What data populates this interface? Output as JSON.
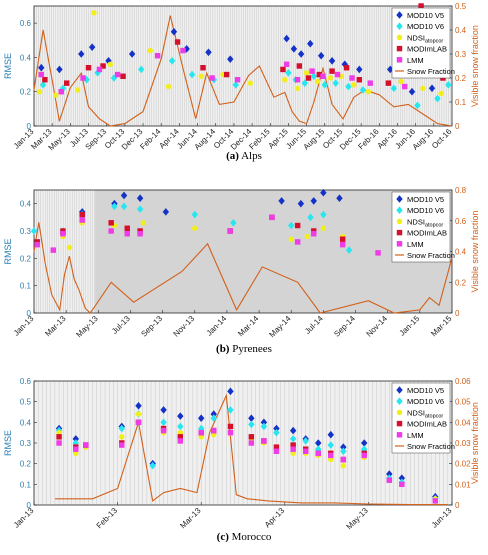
{
  "legend_labels": [
    "MOD10 V5",
    "MOD10 V6",
    "NDSI",
    "MODImLAB",
    "LMM",
    "Snow Fraction"
  ],
  "legend_subscript": "atopcor",
  "colors": {
    "MOD10 V5": "#1432c8",
    "MOD10 V6": "#27e6f0",
    "NDSI": "#f2ee1c",
    "MODImLAB": "#d4102c",
    "LMM": "#ee3ce6",
    "Snow Fraction": "#d2601a",
    "axis_left": "#2a7fb5",
    "axis_right": "#d2601a"
  },
  "chart_data": [
    {
      "type": "scatter",
      "panel": "a",
      "caption_letter": "(a)",
      "caption_text": "Alps",
      "ylabel": "RMSE",
      "y2label": "Visible snow fraction",
      "ylim": [
        0,
        0.7
      ],
      "y2lim": [
        0,
        0.5
      ],
      "yticks": [
        0,
        0.2,
        0.4,
        0.6
      ],
      "y2ticks": [
        0,
        0.1,
        0.2,
        0.3,
        0.4,
        0.5
      ],
      "xticks": [
        "Jan-13",
        "Mar-13",
        "May-13",
        "Jul-13",
        "Sep-13",
        "Oct-13",
        "Dec-13",
        "Feb-14",
        "Apr-14",
        "Jun-14",
        "Aug-14",
        "Oct-14",
        "Dec-14",
        "Feb-15",
        "Apr-15",
        "Jun-15",
        "Aug-15",
        "Oct-15",
        "Dec-15",
        "Feb-16",
        "Apr-16",
        "Jun-16",
        "Aug-16",
        "Oct-16"
      ],
      "xlim": [
        0,
        23
      ],
      "series": [
        {
          "name": "MOD10 V5",
          "x": [
            0.4,
            1.4,
            2.6,
            3.2,
            4.1,
            5.4,
            7.7,
            8.4,
            9.6,
            10.8,
            13.9,
            14.3,
            14.7,
            15.2,
            15.8,
            16.4,
            17.1,
            17.9,
            19.6,
            20.8,
            21.9,
            22.6
          ],
          "values": [
            0.34,
            0.33,
            0.42,
            0.46,
            0.38,
            0.42,
            0.55,
            0.45,
            0.43,
            0.39,
            0.51,
            0.45,
            0.42,
            0.48,
            0.41,
            0.38,
            0.36,
            0.33,
            0.33,
            0.2,
            0.22,
            0.3
          ]
        },
        {
          "name": "MOD10 V6",
          "x": [
            0.5,
            1.6,
            2.9,
            3.5,
            4.4,
            5.9,
            7.6,
            8.7,
            9.9,
            11.1,
            14.0,
            14.4,
            14.9,
            15.4,
            16.0,
            16.6,
            17.3,
            18.1,
            19.8,
            21.1,
            22.2,
            22.8
          ],
          "values": [
            0.24,
            0.22,
            0.27,
            0.31,
            0.28,
            0.33,
            0.38,
            0.3,
            0.27,
            0.24,
            0.31,
            0.27,
            0.25,
            0.29,
            0.24,
            0.25,
            0.23,
            0.21,
            0.22,
            0.12,
            0.16,
            0.24
          ]
        },
        {
          "name": "NDSI",
          "x": [
            0.3,
            1.2,
            2.4,
            3.3,
            4.2,
            6.4,
            7.4,
            9.2,
            10.4,
            11.9,
            13.8,
            14.5,
            15.0,
            15.6,
            16.3,
            16.9,
            17.6,
            18.4,
            20.2,
            21.4,
            22.4
          ],
          "values": [
            0.2,
            0.18,
            0.21,
            0.66,
            0.36,
            0.44,
            0.23,
            0.29,
            0.3,
            0.25,
            0.27,
            0.22,
            0.31,
            0.26,
            0.28,
            0.29,
            0.24,
            0.2,
            0.26,
            0.22,
            0.19
          ]
        },
        {
          "name": "MODImLAB",
          "x": [
            0.6,
            1.8,
            3.0,
            3.8,
            4.9,
            7.9,
            9.3,
            10.6,
            13.7,
            14.6,
            15.1,
            15.7,
            16.4,
            17.2,
            17.9,
            19.5,
            21.3,
            22.5
          ],
          "values": [
            0.27,
            0.25,
            0.34,
            0.35,
            0.29,
            0.49,
            0.34,
            0.3,
            0.33,
            0.35,
            0.28,
            0.3,
            0.32,
            0.34,
            0.27,
            0.25,
            0.71,
            0.28
          ]
        },
        {
          "name": "LMM",
          "x": [
            0.4,
            1.5,
            2.7,
            3.6,
            4.6,
            6.8,
            8.2,
            9.8,
            11.2,
            13.9,
            14.5,
            15.3,
            15.9,
            16.7,
            17.5,
            18.5,
            20.4,
            21.8
          ],
          "values": [
            0.3,
            0.2,
            0.28,
            0.33,
            0.3,
            0.41,
            0.44,
            0.28,
            0.27,
            0.36,
            0.27,
            0.32,
            0.29,
            0.3,
            0.28,
            0.25,
            0.23,
            0.3
          ]
        },
        {
          "name": "Snow Fraction",
          "x": [
            0,
            0.5,
            1.0,
            1.4,
            2.0,
            2.6,
            3.0,
            3.6,
            4.2,
            5.0,
            6.0,
            7.0,
            7.5,
            8.2,
            8.9,
            9.5,
            10.2,
            11.0,
            11.8,
            12.4,
            13.2,
            13.8,
            14.2,
            14.6,
            15.0,
            15.4,
            15.9,
            16.4,
            17.0,
            17.6,
            18.2,
            19.0,
            19.8,
            20.6,
            21.4,
            22.2,
            23.0
          ],
          "values": [
            0.15,
            0.4,
            0.19,
            0.02,
            0.16,
            0.22,
            0.08,
            0.03,
            0.0,
            0.01,
            0.06,
            0.28,
            0.46,
            0.24,
            0.03,
            0.22,
            0.09,
            0.1,
            0.21,
            0.25,
            0.12,
            0.14,
            0.06,
            0.02,
            0.01,
            0.1,
            0.24,
            0.09,
            0.03,
            0.12,
            0.15,
            0.13,
            0.08,
            0.09,
            0.05,
            0.01,
            0.0
          ]
        }
      ]
    },
    {
      "type": "scatter",
      "panel": "b",
      "caption_letter": "(b)",
      "caption_text": "Pyrenees",
      "ylabel": "RMSE",
      "y2label": "Visible snow fraction",
      "ylim": [
        0,
        0.45
      ],
      "y2lim": [
        0,
        0.8
      ],
      "yticks": [
        0,
        0.1,
        0.2,
        0.3,
        0.4
      ],
      "y2ticks": [
        0,
        0.2,
        0.4,
        0.6,
        0.8
      ],
      "xticks": [
        "Jan-13",
        "Mar-13",
        "May-13",
        "Jul-13",
        "Sep-13",
        "Nov-13",
        "Jan-14",
        "Mar-14",
        "May-14",
        "Jul-14",
        "Sep-14",
        "Nov-14",
        "Jan-15",
        "Mar-15"
      ],
      "xlim": [
        0,
        13
      ],
      "series": [
        {
          "name": "MOD10 V5",
          "x": [
            0.9,
            1.5,
            2.5,
            2.8,
            3.3,
            4.1,
            7.7,
            8.3,
            8.7,
            9.0,
            9.5
          ],
          "values": [
            0.29,
            0.37,
            0.4,
            0.43,
            0.42,
            0.37,
            0.41,
            0.4,
            0.41,
            0.44,
            0.42
          ]
        },
        {
          "name": "MOD10 V6",
          "x": [
            0.0,
            0.9,
            1.5,
            2.5,
            2.8,
            3.3,
            5.0,
            6.2,
            8.0,
            8.6,
            9.0,
            9.8
          ],
          "values": [
            0.3,
            0.3,
            0.36,
            0.39,
            0.39,
            0.38,
            0.36,
            0.33,
            0.32,
            0.35,
            0.36,
            0.23
          ]
        },
        {
          "name": "NDSI",
          "x": [
            0.9,
            1.1,
            1.5,
            2.5,
            2.9,
            3.4,
            5.0,
            6.1,
            8.0,
            8.5,
            9.0,
            9.6
          ],
          "values": [
            0.28,
            0.24,
            0.33,
            0.32,
            0.31,
            0.33,
            0.31,
            0.3,
            0.27,
            0.28,
            0.31,
            0.28
          ]
        },
        {
          "name": "MODImLAB",
          "x": [
            0.1,
            0.9,
            1.5,
            2.4,
            2.9,
            3.3,
            6.1,
            7.4,
            8.2,
            8.7,
            9.6
          ],
          "values": [
            0.26,
            0.3,
            0.36,
            0.33,
            0.31,
            0.3,
            0.3,
            0.35,
            0.32,
            0.3,
            0.27
          ]
        },
        {
          "name": "LMM",
          "x": [
            0.1,
            0.6,
            0.9,
            1.5,
            2.4,
            2.9,
            3.3,
            6.1,
            7.4,
            8.2,
            8.7,
            9.6,
            10.7
          ],
          "values": [
            0.25,
            0.23,
            0.29,
            0.34,
            0.3,
            0.29,
            0.29,
            0.3,
            0.35,
            0.26,
            0.29,
            0.25,
            0.22
          ]
        },
        {
          "name": "Snow Fraction",
          "x": [
            0.0,
            0.15,
            0.35,
            0.55,
            0.8,
            0.95,
            1.1,
            1.25,
            1.4,
            1.6,
            1.75,
            2.4,
            3.1,
            4.6,
            5.4,
            6.3,
            7.1,
            8.2,
            8.9,
            10.4,
            11.2,
            12.0,
            12.3,
            12.6,
            13.0
          ],
          "values": [
            0.4,
            0.59,
            0.32,
            0.12,
            0.02,
            0.25,
            0.37,
            0.22,
            0.15,
            0.03,
            0.0,
            0.2,
            0.07,
            0.27,
            0.45,
            0.02,
            0.3,
            0.2,
            0.0,
            0.08,
            0.0,
            0.02,
            0.1,
            0.05,
            0.36
          ]
        }
      ]
    },
    {
      "type": "scatter",
      "panel": "c",
      "caption_letter": "(c)",
      "caption_text": "Morocco",
      "ylabel": "RMSE",
      "y2label": "Visible snow fraction",
      "ylim": [
        0,
        0.6
      ],
      "y2lim": [
        0,
        0.06
      ],
      "yticks": [
        0,
        0.1,
        0.2,
        0.3,
        0.4,
        0.5,
        0.6
      ],
      "y2ticks": [
        0,
        0.01,
        0.02,
        0.03,
        0.04,
        0.05,
        0.06
      ],
      "xticks": [
        "Jan-13",
        "Feb-13",
        "Mar-13",
        "Apr-13",
        "May-13",
        "Jun-13"
      ],
      "xlim": [
        0,
        5
      ],
      "series": [
        {
          "name": "MOD10 V5",
          "x": [
            0.3,
            0.5,
            1.05,
            1.25,
            1.42,
            1.55,
            1.75,
            2.0,
            2.15,
            2.35,
            2.6,
            2.75,
            2.9,
            3.1,
            3.25,
            3.4,
            3.55,
            3.7,
            3.95,
            4.25,
            4.4,
            4.8
          ],
          "values": [
            0.37,
            0.32,
            0.38,
            0.48,
            0.2,
            0.46,
            0.43,
            0.42,
            0.44,
            0.55,
            0.42,
            0.4,
            0.37,
            0.36,
            0.32,
            0.3,
            0.34,
            0.28,
            0.3,
            0.15,
            0.13,
            0.04
          ]
        },
        {
          "name": "MOD10 V6",
          "x": [
            0.3,
            0.5,
            1.05,
            1.25,
            1.42,
            1.55,
            1.75,
            2.0,
            2.15,
            2.35,
            2.6,
            2.75,
            2.9,
            3.1,
            3.25,
            3.4,
            3.55,
            3.7,
            3.95,
            4.25,
            4.4,
            4.8
          ],
          "values": [
            0.36,
            0.3,
            0.37,
            0.44,
            0.19,
            0.4,
            0.38,
            0.37,
            0.42,
            0.46,
            0.39,
            0.38,
            0.35,
            0.32,
            0.31,
            0.27,
            0.29,
            0.26,
            0.27,
            0.13,
            0.11,
            0.03
          ]
        },
        {
          "name": "NDSI",
          "x": [
            0.3,
            0.5,
            0.62,
            1.05,
            1.25,
            1.55,
            1.75,
            2.0,
            2.15,
            2.35,
            2.6,
            2.75,
            2.9,
            3.1,
            3.25,
            3.4,
            3.55,
            3.7,
            3.95,
            4.25,
            4.4,
            4.8
          ],
          "values": [
            0.35,
            0.25,
            0.28,
            0.33,
            0.44,
            0.35,
            0.35,
            0.33,
            0.34,
            0.35,
            0.31,
            0.3,
            0.27,
            0.25,
            0.25,
            0.24,
            0.22,
            0.19,
            0.23,
            0.12,
            0.1,
            0.03
          ]
        },
        {
          "name": "MODImLAB",
          "x": [
            0.3,
            0.5,
            0.62,
            1.05,
            1.25,
            1.55,
            1.75,
            2.0,
            2.15,
            2.35,
            2.6,
            2.75,
            2.9,
            3.1,
            3.25,
            3.4,
            3.55,
            3.7,
            3.95
          ],
          "values": [
            0.33,
            0.28,
            0.29,
            0.3,
            0.4,
            0.37,
            0.33,
            0.35,
            0.36,
            0.38,
            0.33,
            0.31,
            0.28,
            0.29,
            0.27,
            0.25,
            0.25,
            0.22,
            0.25
          ]
        },
        {
          "name": "LMM",
          "x": [
            0.3,
            0.5,
            0.62,
            1.05,
            1.25,
            1.55,
            1.75,
            2.0,
            2.15,
            2.35,
            2.6,
            2.75,
            2.9,
            3.1,
            3.25,
            3.4,
            3.55,
            3.7,
            3.95,
            4.25,
            4.4,
            4.8
          ],
          "values": [
            0.3,
            0.27,
            0.29,
            0.29,
            0.4,
            0.36,
            0.31,
            0.35,
            0.36,
            0.35,
            0.3,
            0.31,
            0.26,
            0.27,
            0.26,
            0.25,
            0.24,
            0.22,
            0.24,
            0.12,
            0.1,
            0.02
          ]
        },
        {
          "name": "Snow Fraction",
          "x": [
            0.25,
            0.7,
            1.0,
            1.25,
            1.42,
            1.55,
            1.75,
            1.95,
            2.1,
            2.3,
            2.42,
            2.55,
            2.8,
            3.2,
            3.6,
            4.0,
            4.5,
            4.95
          ],
          "values": [
            0.003,
            0.003,
            0.008,
            0.04,
            0.002,
            0.006,
            0.008,
            0.006,
            0.035,
            0.053,
            0.005,
            0.003,
            0.002,
            0.001,
            0.001,
            0.0005,
            0.0002,
            0.0002
          ]
        }
      ]
    }
  ]
}
